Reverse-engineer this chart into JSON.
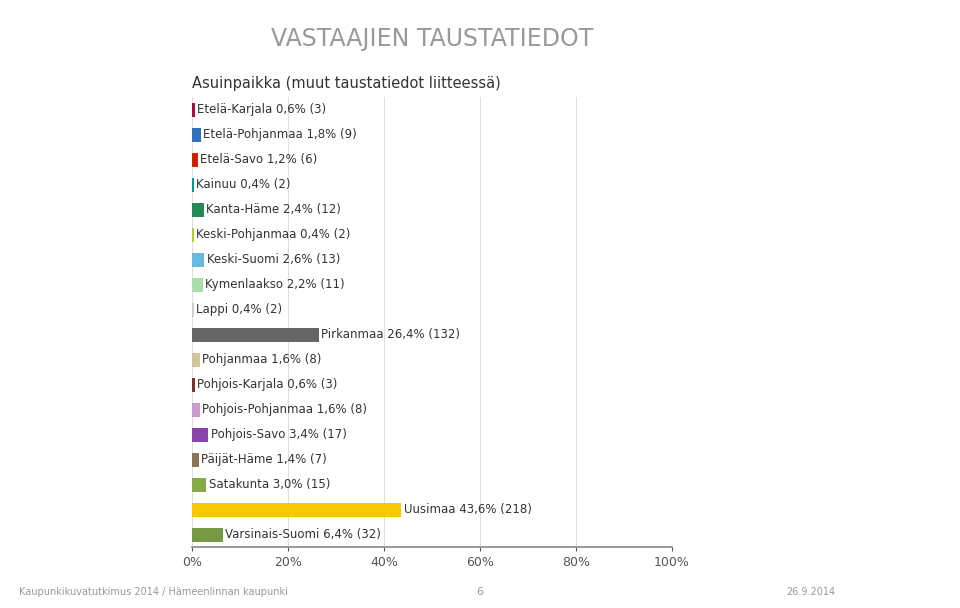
{
  "title": "VASTAAJIEN TAUSTATIEDOT",
  "subtitle": "Asuinpaikka (muut taustatiedot liitteessä)",
  "labels": [
    "Etelä-Karjala 0,6% (3)",
    "Etelä-Pohjanmaa 1,8% (9)",
    "Etelä-Savo 1,2% (6)",
    "Kainuu 0,4% (2)",
    "Kanta-Häme 2,4% (12)",
    "Keski-Pohjanmaa 0,4% (2)",
    "Keski-Suomi 2,6% (13)",
    "Kymenlaakso 2,2% (11)",
    "Lappi 0,4% (2)",
    "Pirkanmaa 26,4% (132)",
    "Pohjanmaa 1,6% (8)",
    "Pohjois-Karjala 0,6% (3)",
    "Pohjois-Pohjanmaa 1,6% (8)",
    "Pohjois-Savo 3,4% (17)",
    "Päijät-Häme 1,4% (7)",
    "Satakunta 3,0% (15)",
    "Uusimaa 43,6% (218)",
    "Varsinais-Suomi 6,4% (32)"
  ],
  "values": [
    0.6,
    1.8,
    1.2,
    0.4,
    2.4,
    0.4,
    2.6,
    2.2,
    0.4,
    26.4,
    1.6,
    0.6,
    1.6,
    3.4,
    1.4,
    3.0,
    43.6,
    6.4
  ],
  "colors": [
    "#A0143C",
    "#2E6FBF",
    "#CC2200",
    "#009999",
    "#228B55",
    "#BBCC22",
    "#66BBDD",
    "#AADDAA",
    "#CCCCCC",
    "#666666",
    "#D4C4A0",
    "#7B3322",
    "#CC99CC",
    "#8844AA",
    "#8B7355",
    "#88AA44",
    "#F5C800",
    "#779944"
  ],
  "label_outside": [
    false,
    false,
    false,
    false,
    false,
    false,
    false,
    false,
    false,
    true,
    false,
    false,
    false,
    false,
    false,
    false,
    true,
    false
  ],
  "xlabel_ticks": [
    "0%",
    "20%",
    "40%",
    "60%",
    "80%",
    "100%"
  ],
  "xlabel_values": [
    0,
    20,
    40,
    60,
    80,
    100
  ],
  "background_color": "#FFFFFF",
  "title_color": "#999999",
  "subtitle_color": "#333333",
  "label_color": "#333333",
  "footer_left": "Kaupunkikuvatutkimus 2014 / Hämeenlinnan kaupunki",
  "footer_center": "6",
  "footer_right": "26.9.2014"
}
